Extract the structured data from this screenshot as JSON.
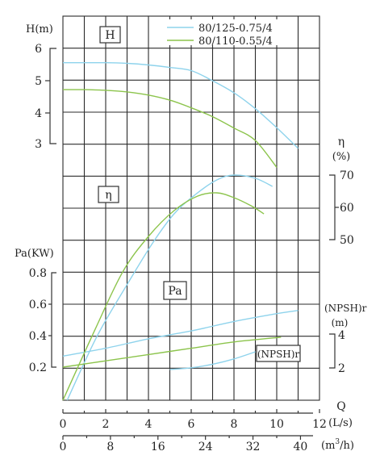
{
  "chart_data": {
    "type": "line",
    "legend": {
      "placement": "top-right",
      "entries": [
        {
          "label": "80/125-0.75/4",
          "color": "#8ed3ec"
        },
        {
          "label": "80/110-0.55/4",
          "color": "#8cc44c"
        }
      ]
    },
    "panels": {
      "head": {
        "box_label": "H",
        "axis_title": "H(m)",
        "ticks": [
          "6",
          "5",
          "4",
          "3"
        ],
        "ylim": [
          3,
          6
        ]
      },
      "efficiency": {
        "box_label": "η",
        "axis_title_line1": "η",
        "axis_title_line2": "(%)",
        "ticks": [
          "70",
          "60",
          "50"
        ],
        "ylim": [
          50,
          70
        ]
      },
      "power": {
        "box_label": "Pa",
        "axis_title": "Pa(KW)",
        "ticks": [
          "0.8",
          "0.6",
          "0.4",
          "0.2"
        ],
        "ylim": [
          0.2,
          0.8
        ]
      },
      "npsh": {
        "box_label": "(NPSH)r",
        "axis_title_line1": "(NPSH)r",
        "axis_title_line2": "(m)",
        "ticks": [
          "4",
          "2"
        ],
        "ylim": [
          2,
          4
        ]
      }
    },
    "x_axis": {
      "title": "Q",
      "unit_ls": "(L/s)",
      "unit_m3h_prefix": "(m",
      "unit_m3h_exp": "3",
      "unit_m3h_suffix": "/h)",
      "ticks_ls": [
        "0",
        "2",
        "4",
        "6",
        "8",
        "10",
        "12"
      ],
      "ticks_m3h": [
        "0",
        "8",
        "16",
        "24",
        "32",
        "40"
      ],
      "xlim_ls": [
        0,
        12
      ]
    },
    "grid": true,
    "series": [
      {
        "name": "80/125-0.75/4",
        "color": "#8ed3ec",
        "head": {
          "x": [
            0,
            2,
            3,
            4,
            5,
            6,
            7,
            8,
            9,
            10,
            11
          ],
          "y": [
            5.55,
            5.55,
            5.53,
            5.48,
            5.4,
            5.3,
            4.98,
            4.6,
            4.1,
            3.5,
            2.85
          ]
        },
        "efficiency": {
          "x": [
            0.2,
            1.6,
            3,
            4.2,
            5.2,
            6.2,
            7.2,
            8,
            9,
            9.8
          ],
          "y": [
            0,
            20,
            36,
            49,
            58,
            64,
            68.5,
            70,
            69,
            66.5
          ]
        },
        "power": {
          "x": [
            0,
            2,
            4,
            6,
            8,
            10,
            11
          ],
          "y": [
            0.27,
            0.32,
            0.38,
            0.43,
            0.49,
            0.54,
            0.56
          ]
        },
        "npsh": {
          "x": [
            5,
            6,
            7,
            8,
            9
          ],
          "y": [
            0.2,
            0.21,
            0.23,
            0.26,
            0.3
          ]
        }
      },
      {
        "name": "80/110-0.55/4",
        "color": "#8cc44c",
        "head": {
          "x": [
            0,
            1,
            2,
            3,
            4,
            5,
            6,
            7,
            8,
            9,
            10
          ],
          "y": [
            4.7,
            4.7,
            4.68,
            4.63,
            4.53,
            4.37,
            4.13,
            3.85,
            3.49,
            3.1,
            2.25
          ]
        },
        "efficiency": {
          "x": [
            0,
            1.5,
            2.8,
            4,
            5.2,
            6.3,
            7.2,
            8,
            8.8,
            9.4
          ],
          "y": [
            0,
            22,
            40,
            51,
            59,
            63.5,
            64.5,
            63,
            60.5,
            58
          ]
        },
        "power": {
          "x": [
            0,
            2,
            4,
            6,
            8,
            10.2
          ],
          "y": [
            0.2,
            0.24,
            0.28,
            0.32,
            0.36,
            0.39
          ]
        },
        "npsh": {
          "x": [],
          "y": []
        }
      }
    ]
  }
}
